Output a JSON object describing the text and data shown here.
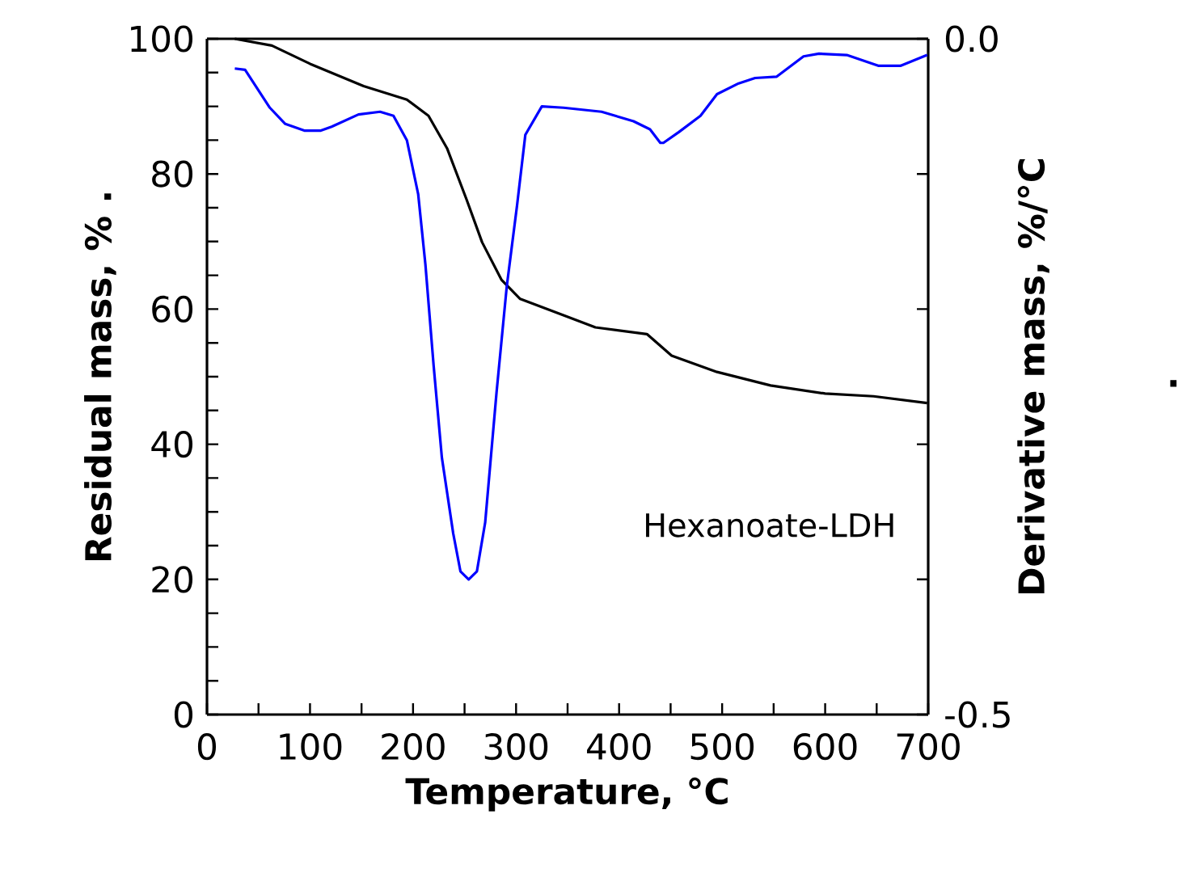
{
  "chart_data": {
    "type": "line",
    "xlabel": "Temperature, °C",
    "ylabel": "Residual mass, % .",
    "y2label": "Derivative mass, %/°C",
    "annotations": [
      "Hexanoate-LDH",
      "."
    ],
    "xlim": [
      0,
      700
    ],
    "ylim": [
      0,
      100
    ],
    "y2lim": [
      -0.5,
      0
    ],
    "xticks": [
      0,
      {
        "value": 50,
        "label": null
      },
      100,
      {
        "value": 150,
        "label": null
      },
      200,
      {
        "value": 250,
        "label": null
      },
      300,
      {
        "value": 350,
        "label": null
      },
      400,
      {
        "value": 450,
        "label": null
      },
      500,
      {
        "value": 550,
        "label": null
      },
      600,
      {
        "value": 650,
        "label": null
      },
      700
    ],
    "yticks": [
      0,
      {
        "value": 5,
        "label": null
      },
      {
        "value": 10,
        "label": null
      },
      {
        "value": 15,
        "label": null
      },
      20,
      {
        "value": 25,
        "label": null
      },
      {
        "value": 30,
        "label": null
      },
      {
        "value": 35,
        "label": null
      },
      40,
      {
        "value": 45,
        "label": null
      },
      {
        "value": 50,
        "label": null
      },
      {
        "value": 55,
        "label": null
      },
      60,
      {
        "value": 65,
        "label": null
      },
      {
        "value": 70,
        "label": null
      },
      {
        "value": 75,
        "label": null
      },
      80,
      {
        "value": 85,
        "label": null
      },
      {
        "value": 90,
        "label": null
      },
      {
        "value": 95,
        "label": null
      },
      100
    ],
    "y2ticks": [
      {
        "value": -0.5,
        "label": "-0.5"
      },
      {
        "value": -0.4,
        "label": null
      },
      {
        "value": -0.3,
        "label": null
      },
      {
        "value": -0.2,
        "label": null
      },
      {
        "value": -0.1,
        "label": null
      },
      {
        "value": 0,
        "label": "0.0"
      }
    ],
    "series": [
      {
        "color": "#000000",
        "x": [
          27,
          63,
          100,
          152,
          194,
          215,
          233,
          252,
          267,
          286,
          304,
          346,
          377,
          427,
          451,
          495,
          547,
          600,
          647,
          699
        ],
        "values": [
          100,
          99.0,
          96.3,
          93.0,
          91.0,
          88.6,
          83.8,
          76.2,
          69.9,
          64.3,
          61.5,
          59.1,
          57.3,
          56.3,
          53.1,
          50.7,
          48.7,
          47.5,
          47.1,
          46.1
        ]
      },
      {
        "color": "#0000ff",
        "axis": "y2",
        "x": [
          27,
          37,
          61,
          76,
          95,
          110,
          121,
          147,
          168,
          181,
          194,
          205,
          212,
          220,
          228,
          239,
          246,
          254,
          262,
          270,
          281,
          291,
          301,
          309,
          325,
          346,
          383,
          414,
          430,
          440,
          443,
          458,
          479,
          495,
          516,
          532,
          553,
          579,
          594,
          621,
          652,
          673,
          699
        ],
        "values": [
          -0.022,
          -0.023,
          -0.051,
          -0.063,
          -0.068,
          -0.068,
          -0.065,
          -0.056,
          -0.054,
          -0.057,
          -0.075,
          -0.115,
          -0.167,
          -0.242,
          -0.31,
          -0.366,
          -0.394,
          -0.4,
          -0.394,
          -0.358,
          -0.262,
          -0.183,
          -0.123,
          -0.071,
          -0.05,
          -0.051,
          -0.054,
          -0.061,
          -0.067,
          -0.077,
          -0.077,
          -0.069,
          -0.057,
          -0.041,
          -0.033,
          -0.029,
          -0.028,
          -0.013,
          -0.011,
          -0.012,
          -0.02,
          -0.02,
          -0.012
        ]
      }
    ]
  }
}
